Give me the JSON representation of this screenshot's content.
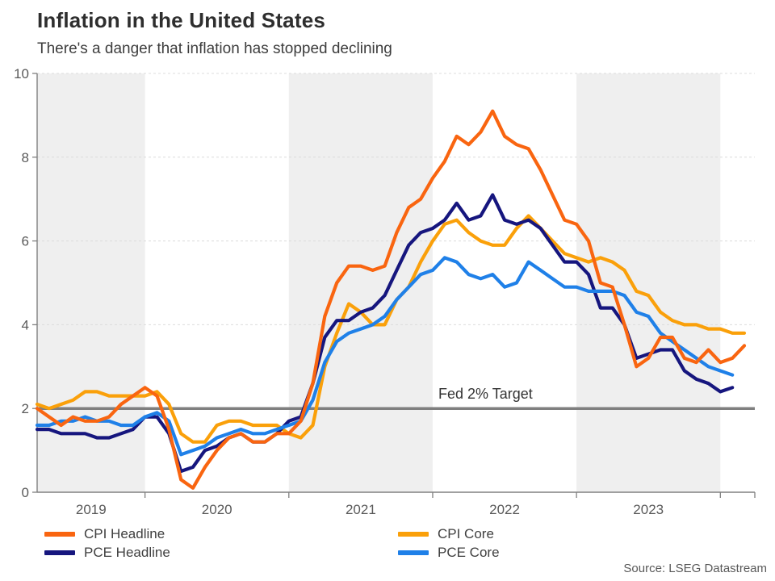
{
  "chart_data": {
    "type": "line",
    "title": "Inflation in the United States",
    "subtitle": "There's a danger that inflation has stopped declining",
    "source": "Source: LSEG Datastream",
    "x_frequency": "monthly",
    "x_tick_labels": [
      "2019",
      "2020",
      "2021",
      "2022",
      "2023"
    ],
    "jan_tick_indices": [
      9,
      21,
      33,
      45,
      57
    ],
    "ylim": [
      0,
      10
    ],
    "yticks": [
      0,
      2,
      4,
      6,
      8,
      10
    ],
    "grid": "dashed horizontal gridlines, alternating vertical year bands",
    "legend_position": "bottom",
    "band_color": "#efefef",
    "axis_color": "#808080",
    "gridline_color": "#dcdcdc",
    "target_line": {
      "value": 2,
      "label": "Fed 2% Target",
      "color": "#7f7f7f"
    },
    "draw_order": [
      2,
      1,
      3,
      0
    ],
    "series": [
      {
        "name": "CPI Headline",
        "color": "#F96510",
        "values": [
          2.0,
          1.8,
          1.6,
          1.8,
          1.7,
          1.7,
          1.8,
          2.1,
          2.3,
          2.5,
          2.3,
          1.5,
          0.3,
          0.1,
          0.6,
          1.0,
          1.3,
          1.4,
          1.2,
          1.2,
          1.4,
          1.4,
          1.7,
          2.6,
          4.2,
          5.0,
          5.4,
          5.4,
          5.3,
          5.4,
          6.2,
          6.8,
          7.0,
          7.5,
          7.9,
          8.5,
          8.3,
          8.6,
          9.1,
          8.5,
          8.3,
          8.2,
          7.7,
          7.1,
          6.5,
          6.4,
          6.0,
          5.0,
          4.9,
          4.0,
          3.0,
          3.2,
          3.7,
          3.7,
          3.2,
          3.1,
          3.4,
          3.1,
          3.2,
          3.5
        ]
      },
      {
        "name": "PCE Headline",
        "color": "#16167E",
        "values": [
          1.5,
          1.5,
          1.4,
          1.4,
          1.4,
          1.3,
          1.3,
          1.4,
          1.5,
          1.8,
          1.8,
          1.4,
          0.5,
          0.6,
          1.0,
          1.1,
          1.3,
          1.4,
          1.2,
          1.2,
          1.4,
          1.7,
          1.8,
          2.6,
          3.7,
          4.1,
          4.1,
          4.3,
          4.4,
          4.7,
          5.3,
          5.9,
          6.2,
          6.3,
          6.5,
          6.9,
          6.5,
          6.6,
          7.1,
          6.5,
          6.4,
          6.5,
          6.3,
          5.9,
          5.5,
          5.5,
          5.2,
          4.4,
          4.4,
          4.0,
          3.2,
          3.3,
          3.4,
          3.4,
          2.9,
          2.7,
          2.6,
          2.4,
          2.5
        ]
      },
      {
        "name": "CPI Core",
        "color": "#FAA00A",
        "values": [
          2.1,
          2.0,
          2.1,
          2.2,
          2.4,
          2.4,
          2.3,
          2.3,
          2.3,
          2.3,
          2.4,
          2.1,
          1.4,
          1.2,
          1.2,
          1.6,
          1.7,
          1.7,
          1.6,
          1.6,
          1.6,
          1.4,
          1.3,
          1.6,
          3.0,
          3.8,
          4.5,
          4.3,
          4.0,
          4.0,
          4.6,
          4.9,
          5.5,
          6.0,
          6.4,
          6.5,
          6.2,
          6.0,
          5.9,
          5.9,
          6.3,
          6.6,
          6.3,
          6.0,
          5.7,
          5.6,
          5.5,
          5.6,
          5.5,
          5.3,
          4.8,
          4.7,
          4.3,
          4.1,
          4.0,
          4.0,
          3.9,
          3.9,
          3.8,
          3.8
        ]
      },
      {
        "name": "PCE Core",
        "color": "#1F80E8",
        "values": [
          1.6,
          1.6,
          1.7,
          1.7,
          1.8,
          1.7,
          1.7,
          1.6,
          1.6,
          1.8,
          1.9,
          1.7,
          0.9,
          1.0,
          1.1,
          1.3,
          1.4,
          1.5,
          1.4,
          1.4,
          1.5,
          1.6,
          1.7,
          2.2,
          3.1,
          3.6,
          3.8,
          3.9,
          4.0,
          4.2,
          4.6,
          4.9,
          5.2,
          5.3,
          5.6,
          5.5,
          5.2,
          5.1,
          5.2,
          4.9,
          5.0,
          5.5,
          5.3,
          5.1,
          4.9,
          4.9,
          4.8,
          4.8,
          4.8,
          4.7,
          4.3,
          4.2,
          3.8,
          3.6,
          3.4,
          3.2,
          3.0,
          2.9,
          2.8
        ]
      }
    ]
  }
}
